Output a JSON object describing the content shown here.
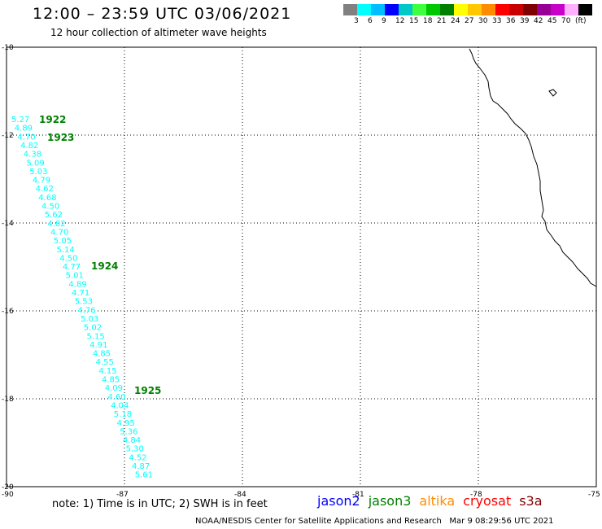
{
  "header": {
    "title": "12:00 – 23:59 UTC 03/06/2021",
    "subtitle": "12 hour collection of altimeter wave heights"
  },
  "colorscale": {
    "colors": [
      "#808080",
      "#00ffff",
      "#00bfff",
      "#0000ff",
      "#00c8c8",
      "#40ff40",
      "#00c800",
      "#008000",
      "#ffff00",
      "#ffc800",
      "#ff8c00",
      "#ff0000",
      "#c80000",
      "#800000",
      "#960096",
      "#c800c8",
      "#ffb0ff",
      "#000000"
    ],
    "labels": [
      "3",
      "6",
      "9",
      "12",
      "15",
      "18",
      "21",
      "24",
      "27",
      "30",
      "33",
      "36",
      "39",
      "42",
      "45",
      "70",
      "(ft)"
    ]
  },
  "axes": {
    "lat_labels": [
      "-10",
      "-12",
      "-14",
      "-16",
      "-18",
      "-20"
    ],
    "lon_labels": [
      "-90",
      "-87",
      "-84",
      "-81",
      "-78",
      "-75"
    ]
  },
  "track": {
    "color": "#00ffff",
    "time_color": "#008000",
    "times": [
      "1922",
      "1923",
      "1924",
      "1925"
    ],
    "values": [
      "5.27",
      "4.89",
      "4.70",
      "4.82",
      "4.38",
      "5.09",
      "5.03",
      "4.79",
      "4.62",
      "4.68",
      "4.50",
      "5.62",
      "4.82",
      "4.70",
      "5.05",
      "5.14",
      "4.50",
      "4.77",
      "5.01",
      "4.89",
      "4.71",
      "5.53",
      "4.76",
      "5.03",
      "5.02",
      "5.15",
      "4.91",
      "4.85",
      "4.55",
      "4.15",
      "4.85",
      "4.09",
      "4.60",
      "4.04",
      "5.18",
      "4.95",
      "5.36",
      "4.84",
      "5.30",
      "4.52",
      "4.87",
      "5.61"
    ]
  },
  "footer": {
    "note": "note: 1) Time is in UTC; 2) SWH is in feet",
    "satellites": [
      {
        "name": "jason2",
        "color": "#0000ff"
      },
      {
        "name": "jason3",
        "color": "#008000"
      },
      {
        "name": "altika",
        "color": "#ff8c00"
      },
      {
        "name": "cryosat",
        "color": "#ff0000"
      },
      {
        "name": "s3a",
        "color": "#800000"
      }
    ],
    "credit": "NOAA/NESDIS Center for Satellite Applications and Research",
    "timestamp": "Mar  9 08:29:56 UTC 2021"
  }
}
